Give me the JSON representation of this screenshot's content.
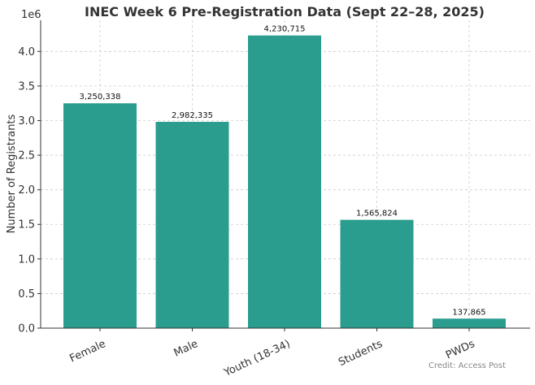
{
  "chart_data": {
    "type": "bar",
    "title": "INEC Week 6 Pre-Registration Data (Sept 22–28, 2025)",
    "ylabel": "Number of Registrants",
    "y_offset_label": "1e6",
    "categories": [
      "Female",
      "Male",
      "Youth (18-34)",
      "Students",
      "PWDs"
    ],
    "values": [
      3250338,
      2982335,
      4230715,
      1565824,
      137865
    ],
    "data_labels": [
      "3,250,338",
      "2,982,335",
      "4,230,715",
      "1,565,824",
      "137,865"
    ],
    "yticks": [
      0,
      0.5,
      1.0,
      1.5,
      2.0,
      2.5,
      3.0,
      3.5,
      4.0
    ],
    "ytick_labels": [
      "0.0",
      "0.5",
      "1.0",
      "1.5",
      "2.0",
      "2.5",
      "3.0",
      "3.5",
      "4.0"
    ],
    "ylim": [
      0,
      4.45
    ],
    "grid": true,
    "bar_color": "#2a9d8f",
    "credit": "Credit: Access Post"
  }
}
